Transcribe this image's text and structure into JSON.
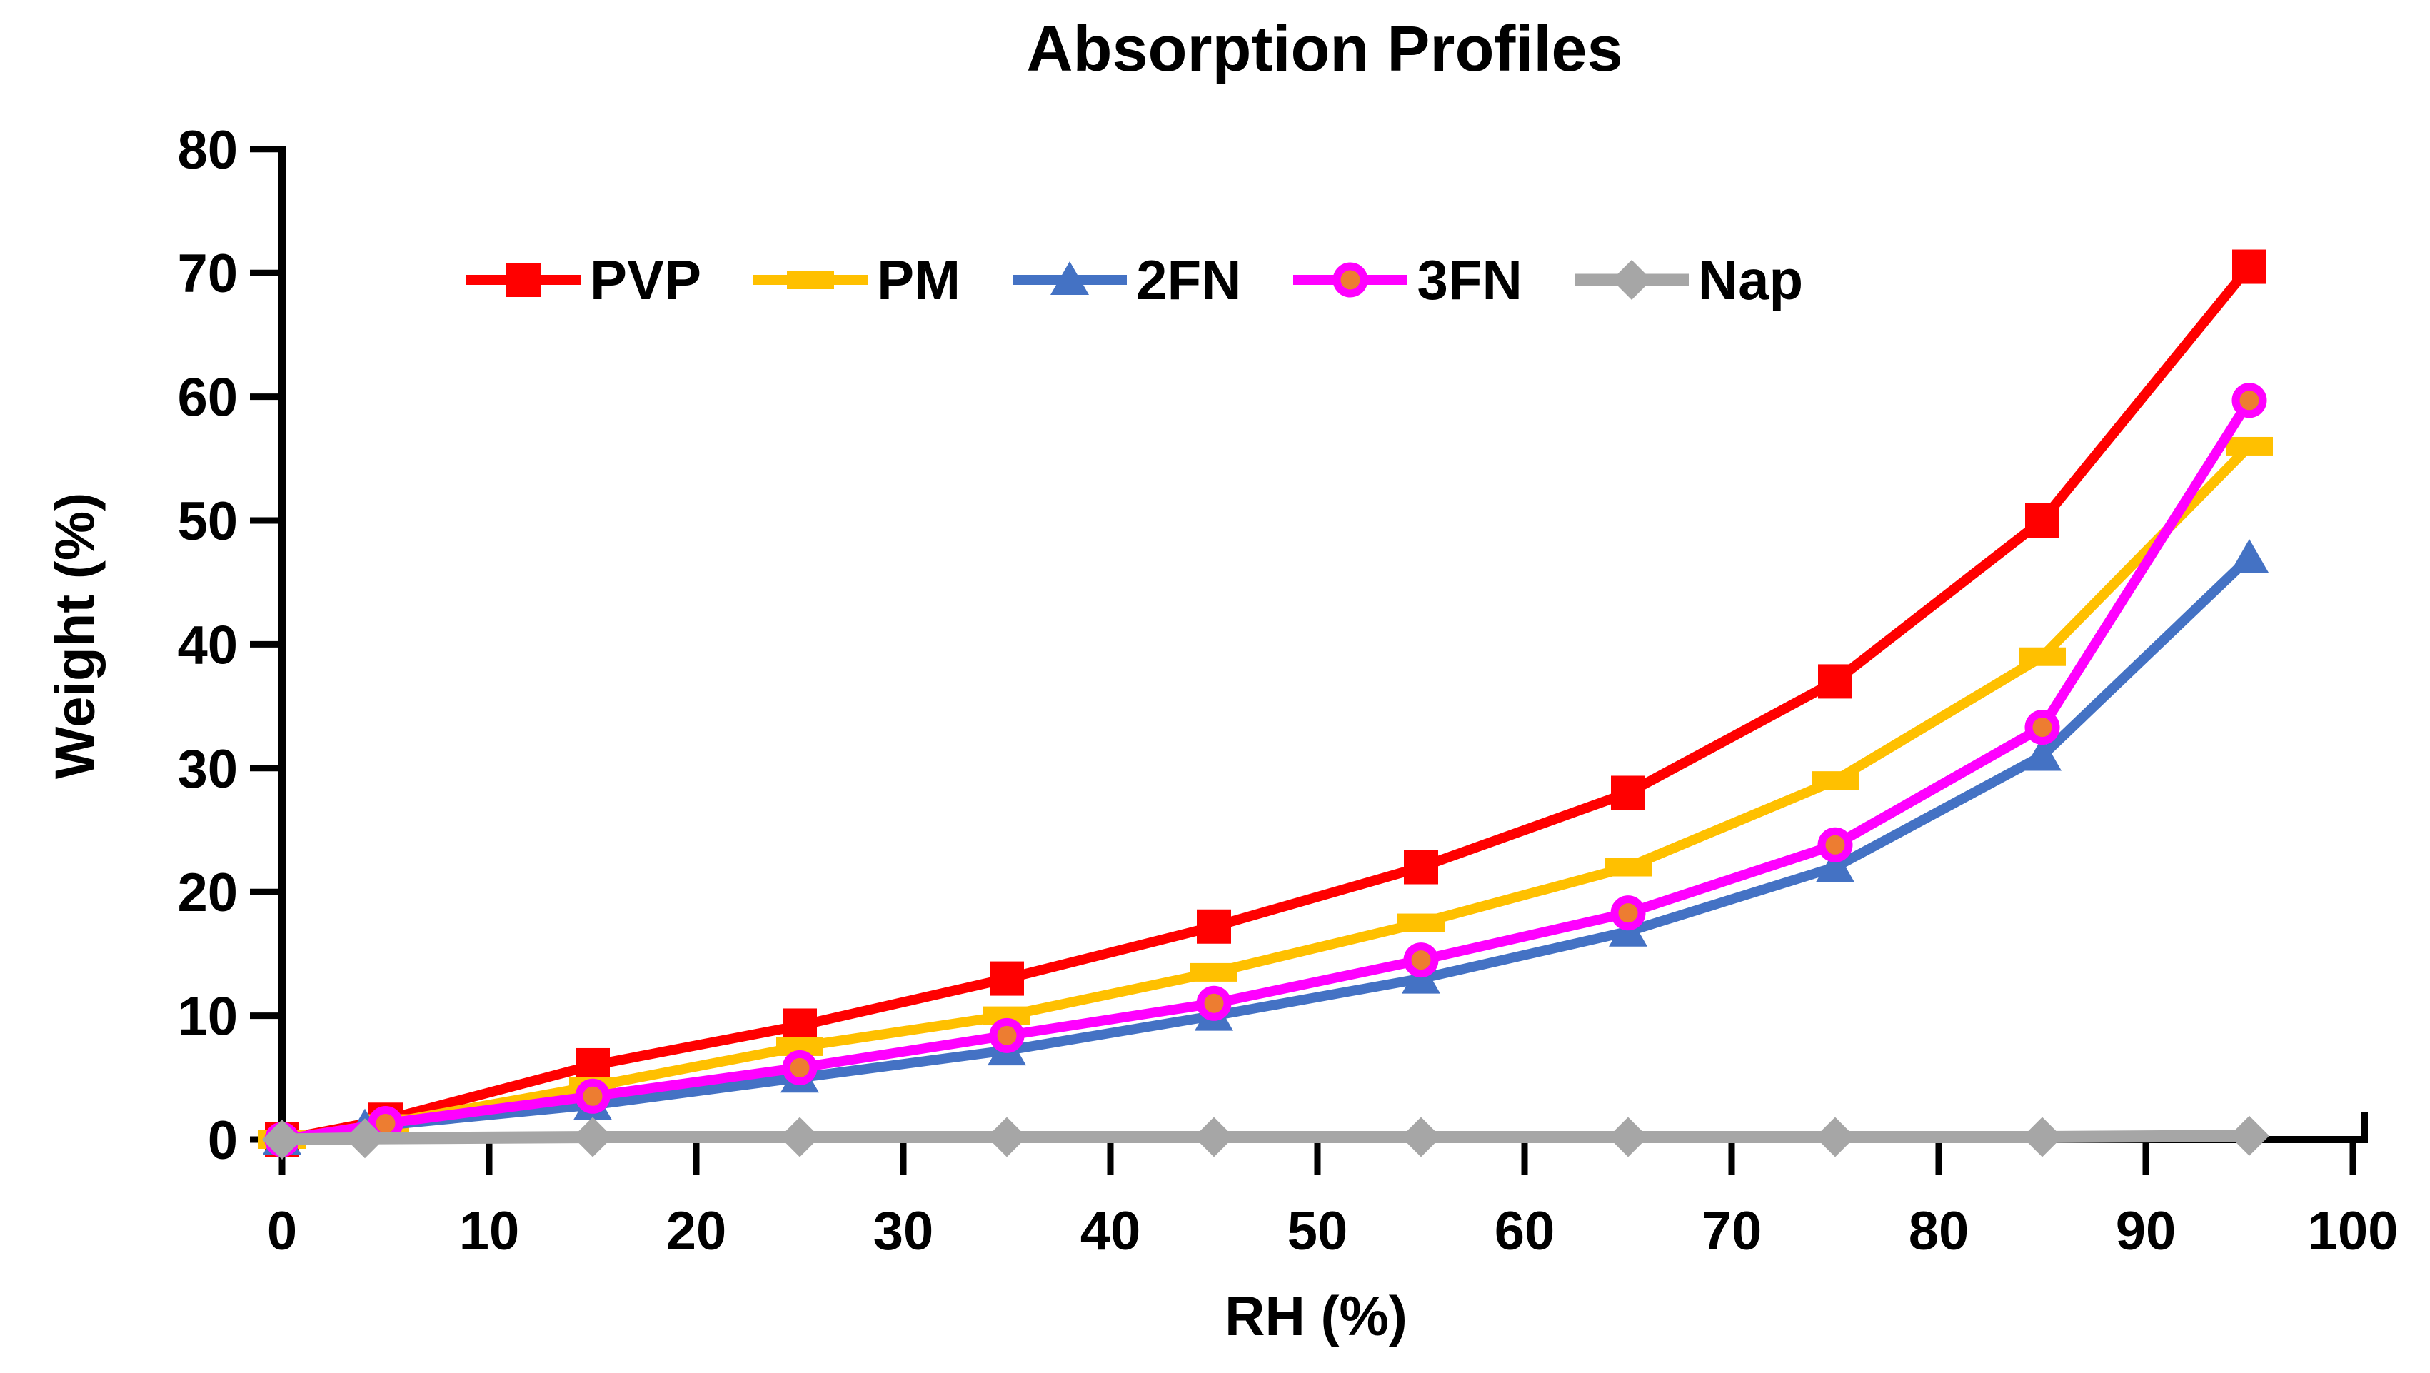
{
  "title": "Absorption Profiles",
  "x_axis": {
    "label": "RH (%)"
  },
  "y_axis": {
    "label": "Weight (%)"
  },
  "chart_data": {
    "type": "line",
    "title": "Absorption Profiles",
    "xlabel": "RH (%)",
    "ylabel": "Weight (%)",
    "xlim": [
      0,
      100
    ],
    "ylim": [
      0,
      80
    ],
    "x_ticks": [
      0,
      10,
      20,
      30,
      40,
      50,
      60,
      70,
      80,
      90,
      100
    ],
    "y_ticks": [
      0,
      10,
      20,
      30,
      40,
      50,
      60,
      70,
      80
    ],
    "grid": false,
    "legend_position": "top-inside-horizontal",
    "axis_color": "#000000",
    "series": [
      {
        "name": "PVP",
        "color": "#FF0000",
        "marker": "square",
        "line_width": 14,
        "x": [
          0,
          5,
          15,
          25,
          35,
          45,
          55,
          65,
          75,
          85,
          95
        ],
        "y": [
          0,
          1.6,
          6,
          9.2,
          13,
          17.2,
          22,
          28,
          37,
          50,
          70.5
        ]
      },
      {
        "name": "PM",
        "color": "#FFC000",
        "marker": "dash",
        "line_width": 14,
        "x": [
          0,
          5,
          15,
          25,
          35,
          45,
          55,
          65,
          75,
          85,
          95
        ],
        "y": [
          0,
          1.3,
          4.3,
          7.5,
          10,
          13.5,
          17.5,
          22,
          29,
          39,
          56
        ]
      },
      {
        "name": "2FN",
        "color": "#4472C4",
        "marker": "triangle",
        "line_width": 14,
        "x": [
          0,
          4,
          15,
          25,
          35,
          45,
          55,
          65,
          75,
          85,
          95
        ],
        "y": [
          0,
          1.0,
          2.8,
          5,
          7.2,
          10,
          13,
          16.8,
          22,
          31,
          47
        ]
      },
      {
        "name": "3FN",
        "color": "#FF00FF",
        "marker": "circle",
        "marker_fill": "#ED7D31",
        "line_width": 14,
        "x": [
          0,
          5,
          15,
          25,
          35,
          45,
          55,
          65,
          75,
          85,
          95
        ],
        "y": [
          0,
          1.3,
          3.5,
          5.8,
          8.4,
          11,
          14.5,
          18.3,
          23.8,
          33.3,
          59.7
        ]
      },
      {
        "name": "Nap",
        "color": "#A6A6A6",
        "marker": "diamond",
        "line_width": 17,
        "x": [
          0,
          4,
          15,
          25,
          35,
          45,
          55,
          65,
          75,
          85,
          95
        ],
        "y": [
          0,
          0.1,
          0.2,
          0.2,
          0.2,
          0.2,
          0.2,
          0.2,
          0.2,
          0.2,
          0.3
        ]
      }
    ]
  }
}
